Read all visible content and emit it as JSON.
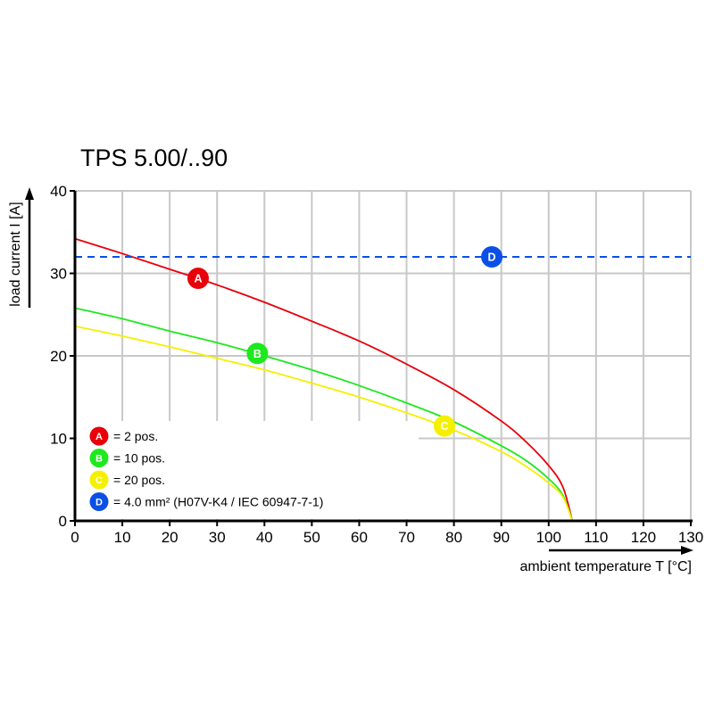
{
  "chart_data": {
    "type": "line",
    "title": "TPS 5.00/..90",
    "xlabel": "ambient temperature T [°C]",
    "ylabel": "load current I [A]",
    "xlim": [
      0,
      130
    ],
    "ylim": [
      0,
      40
    ],
    "xticks": [
      0,
      10,
      20,
      30,
      40,
      50,
      60,
      70,
      80,
      90,
      100,
      110,
      120,
      130
    ],
    "yticks": [
      0,
      10,
      20,
      30,
      40
    ],
    "grid": true,
    "legend_placement": "bottom-left",
    "x": [
      0,
      10,
      20,
      30,
      40,
      50,
      60,
      70,
      80,
      90,
      95,
      100,
      103,
      105
    ],
    "series": [
      {
        "marker": "A",
        "name": "= 2 pos.",
        "color": "#e8000b",
        "marker_at": [
          26,
          29.4
        ],
        "values": [
          34.2,
          32.4,
          30.5,
          28.6,
          26.5,
          24.2,
          21.8,
          19.0,
          15.9,
          12.1,
          9.7,
          6.7,
          4.1,
          0
        ]
      },
      {
        "marker": "B",
        "name": "= 10 pos.",
        "color": "#1ee81e",
        "marker_at": [
          38.5,
          20.3
        ],
        "values": [
          25.8,
          24.5,
          23.0,
          21.6,
          20.0,
          18.3,
          16.4,
          14.3,
          12.0,
          9.1,
          7.4,
          5.1,
          3.1,
          0
        ]
      },
      {
        "marker": "C",
        "name": "= 20 pos.",
        "color": "#f5f000",
        "marker_at": [
          78,
          11.5
        ],
        "values": [
          23.6,
          22.4,
          21.1,
          19.7,
          18.3,
          16.7,
          15.0,
          13.1,
          11.0,
          8.4,
          6.7,
          4.6,
          2.9,
          0
        ]
      },
      {
        "marker": "D",
        "name": "= 4.0 mm² (H07V-K4 / IEC 60947-7-1)",
        "color": "#0a50e6",
        "dashed": true,
        "constant": 32,
        "marker_at": [
          88,
          32
        ]
      }
    ]
  }
}
